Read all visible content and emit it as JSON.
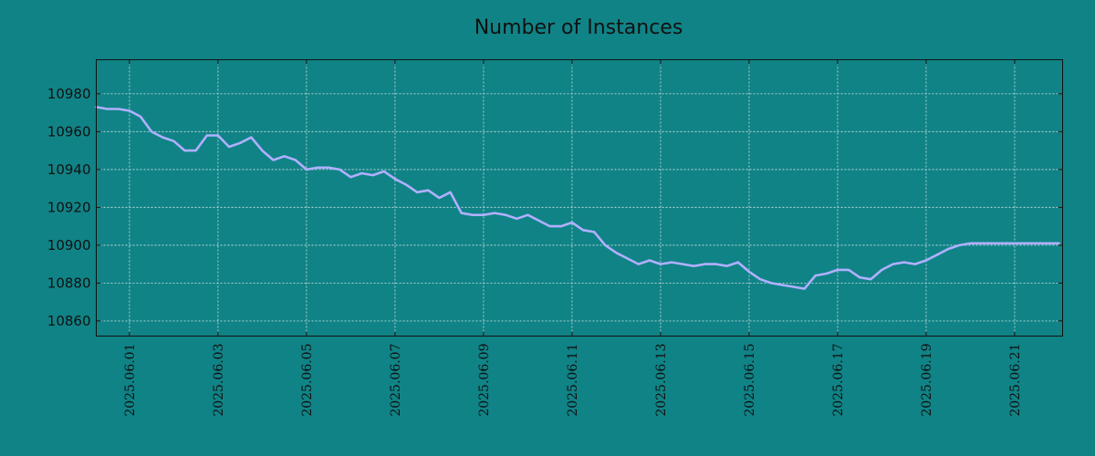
{
  "chart_data": {
    "type": "line",
    "title": "Number of Instances",
    "xlabel": "",
    "ylabel": "",
    "x_range": [
      "2025-05-31T06:00",
      "2025-06-22T02:00"
    ],
    "ylim": [
      10852,
      10998
    ],
    "y_ticks": [
      10860,
      10880,
      10900,
      10920,
      10940,
      10960,
      10980
    ],
    "x_ticks": [
      "2025.06.01",
      "2025.06.03",
      "2025.06.05",
      "2025.06.07",
      "2025.06.09",
      "2025.06.11",
      "2025.06.13",
      "2025.06.15",
      "2025.06.17",
      "2025.06.19",
      "2025.06.21"
    ],
    "grid": true,
    "series": [
      {
        "color": "#b0b0ff",
        "x": [
          "2025-05-31T06:00",
          "2025-05-31T12:00",
          "2025-05-31T18:00",
          "2025-06-01T00:00",
          "2025-06-01T06:00",
          "2025-06-01T12:00",
          "2025-06-01T18:00",
          "2025-06-02T00:00",
          "2025-06-02T06:00",
          "2025-06-02T12:00",
          "2025-06-02T18:00",
          "2025-06-03T00:00",
          "2025-06-03T06:00",
          "2025-06-03T12:00",
          "2025-06-03T18:00",
          "2025-06-04T00:00",
          "2025-06-04T06:00",
          "2025-06-04T12:00",
          "2025-06-04T18:00",
          "2025-06-05T00:00",
          "2025-06-05T06:00",
          "2025-06-05T12:00",
          "2025-06-05T18:00",
          "2025-06-06T00:00",
          "2025-06-06T06:00",
          "2025-06-06T12:00",
          "2025-06-06T18:00",
          "2025-06-07T00:00",
          "2025-06-07T06:00",
          "2025-06-07T12:00",
          "2025-06-07T18:00",
          "2025-06-08T00:00",
          "2025-06-08T06:00",
          "2025-06-08T12:00",
          "2025-06-08T18:00",
          "2025-06-09T00:00",
          "2025-06-09T06:00",
          "2025-06-09T12:00",
          "2025-06-09T18:00",
          "2025-06-10T00:00",
          "2025-06-10T06:00",
          "2025-06-10T12:00",
          "2025-06-10T18:00",
          "2025-06-11T00:00",
          "2025-06-11T06:00",
          "2025-06-11T12:00",
          "2025-06-11T18:00",
          "2025-06-12T00:00",
          "2025-06-12T06:00",
          "2025-06-12T12:00",
          "2025-06-12T18:00",
          "2025-06-13T00:00",
          "2025-06-13T06:00",
          "2025-06-13T12:00",
          "2025-06-13T18:00",
          "2025-06-14T00:00",
          "2025-06-14T06:00",
          "2025-06-14T12:00",
          "2025-06-14T18:00",
          "2025-06-15T00:00",
          "2025-06-15T06:00",
          "2025-06-15T12:00",
          "2025-06-15T18:00",
          "2025-06-16T00:00",
          "2025-06-16T06:00",
          "2025-06-16T12:00",
          "2025-06-16T18:00",
          "2025-06-17T00:00",
          "2025-06-17T06:00",
          "2025-06-17T12:00",
          "2025-06-17T18:00",
          "2025-06-18T00:00",
          "2025-06-18T06:00",
          "2025-06-18T12:00",
          "2025-06-18T18:00",
          "2025-06-19T00:00",
          "2025-06-19T06:00",
          "2025-06-19T12:00",
          "2025-06-19T18:00",
          "2025-06-20T00:00",
          "2025-06-20T06:00",
          "2025-06-20T12:00",
          "2025-06-20T18:00",
          "2025-06-21T00:00",
          "2025-06-21T06:00",
          "2025-06-21T12:00",
          "2025-06-21T18:00",
          "2025-06-22T00:00"
        ],
        "y": [
          10973,
          10972,
          10972,
          10971,
          10968,
          10960,
          10957,
          10955,
          10950,
          10950,
          10958,
          10958,
          10952,
          10954,
          10957,
          10950,
          10945,
          10947,
          10945,
          10940,
          10941,
          10941,
          10940,
          10936,
          10938,
          10937,
          10939,
          10935,
          10932,
          10928,
          10929,
          10925,
          10928,
          10917,
          10916,
          10916,
          10917,
          10916,
          10914,
          10916,
          10913,
          10910,
          10910,
          10912,
          10908,
          10907,
          10900,
          10896,
          10893,
          10890,
          10892,
          10890,
          10891,
          10890,
          10889,
          10890,
          10890,
          10889,
          10891,
          10886,
          10882,
          10880,
          10879,
          10878,
          10877,
          10884,
          10885,
          10887,
          10887,
          10883,
          10882,
          10887,
          10890,
          10891,
          10890,
          10892,
          10895,
          10898,
          10900,
          10901,
          10901,
          10901,
          10901,
          10901,
          10901,
          10901,
          10901,
          10901
        ]
      }
    ]
  }
}
